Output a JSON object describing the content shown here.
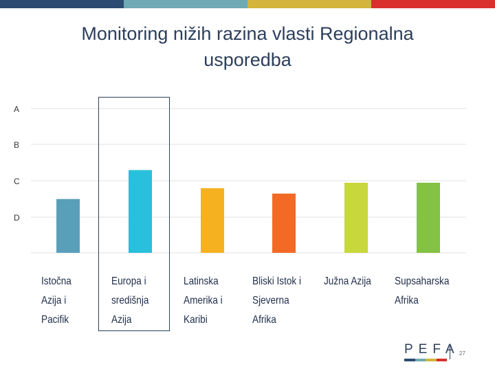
{
  "top_bar_colors": [
    "#2b4b72",
    "#6fa9b5",
    "#d4b43a",
    "#d9302e"
  ],
  "title": {
    "line1_prefix": "Monitoring nižih razina vlasti ",
    "line1_bold": "Regionalna",
    "line2": "usporedba"
  },
  "chart_data": {
    "type": "bar",
    "title": "Monitoring nižih razina vlasti Regionalna usporedba",
    "y_scale": [
      "A",
      "B",
      "C",
      "D"
    ],
    "ylim_note": "A = top, D = bottom; values expressed on numeric scale where A=4, B=3, C=2, D=1",
    "ylim": [
      0,
      4
    ],
    "categories": [
      {
        "lines": [
          "Istočna",
          "Azija i",
          "Pacifik"
        ],
        "value": 1.5,
        "color": "#5a9fba"
      },
      {
        "lines": [
          "Europa i",
          "središnja",
          "Azija"
        ],
        "value": 2.3,
        "color": "#28c0dc",
        "highlighted": true
      },
      {
        "lines": [
          "Latinska",
          "Amerika i",
          "Karibi"
        ],
        "value": 1.8,
        "color": "#f5b120"
      },
      {
        "lines": [
          "Bliski Istok i",
          "Sjeverna",
          "Afrika"
        ],
        "value": 1.65,
        "color": "#f26a24"
      },
      {
        "lines": [
          "Južna Azija"
        ],
        "value": 1.95,
        "color": "#c8d73c"
      },
      {
        "lines": [
          "Supsaharska",
          "Afrika"
        ],
        "value": 1.95,
        "color": "#84c243"
      }
    ]
  },
  "logo": {
    "text": "PEFA",
    "stripe_colors": [
      "#2b4b72",
      "#6fa9b5",
      "#d4b43a",
      "#d9302e"
    ]
  },
  "page_number": "27"
}
